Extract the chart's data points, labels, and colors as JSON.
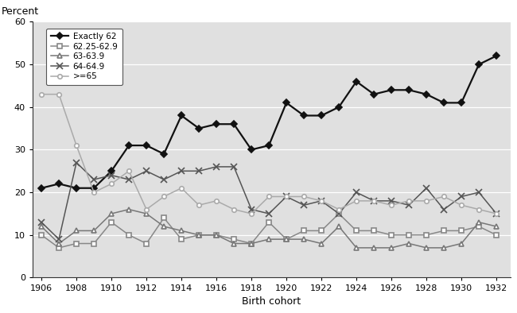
{
  "x": [
    1906,
    1907,
    1908,
    1909,
    1910,
    1911,
    1912,
    1913,
    1914,
    1915,
    1916,
    1917,
    1918,
    1919,
    1920,
    1921,
    1922,
    1923,
    1924,
    1925,
    1926,
    1927,
    1928,
    1929,
    1930,
    1931,
    1932
  ],
  "exactly_62": [
    21,
    22,
    21,
    21,
    25,
    31,
    31,
    29,
    38,
    35,
    36,
    36,
    30,
    31,
    41,
    38,
    38,
    40,
    46,
    43,
    44,
    44,
    43,
    41,
    41,
    50,
    52
  ],
  "s62_25_62_9": [
    10,
    7,
    8,
    8,
    13,
    10,
    8,
    14,
    9,
    10,
    10,
    9,
    8,
    13,
    9,
    11,
    11,
    15,
    11,
    11,
    10,
    10,
    10,
    11,
    11,
    12,
    10
  ],
  "s63_63_9": [
    12,
    8,
    11,
    11,
    15,
    16,
    15,
    12,
    11,
    10,
    10,
    8,
    8,
    9,
    9,
    9,
    8,
    12,
    7,
    7,
    7,
    8,
    7,
    7,
    8,
    13,
    12
  ],
  "s64_64_9": [
    13,
    9,
    27,
    23,
    24,
    23,
    25,
    23,
    25,
    25,
    26,
    26,
    16,
    15,
    19,
    17,
    18,
    15,
    20,
    18,
    18,
    17,
    21,
    16,
    19,
    20,
    15
  ],
  "ge65": [
    43,
    43,
    31,
    20,
    22,
    25,
    16,
    19,
    21,
    17,
    18,
    16,
    15,
    19,
    19,
    19,
    18,
    16,
    18,
    18,
    17,
    18,
    18,
    19,
    17,
    16,
    15
  ],
  "ylim": [
    0,
    60
  ],
  "yticks": [
    0,
    10,
    20,
    30,
    40,
    50,
    60
  ],
  "xticks": [
    1906,
    1908,
    1910,
    1912,
    1914,
    1916,
    1918,
    1920,
    1922,
    1924,
    1926,
    1928,
    1930,
    1932
  ],
  "xlabel": "Birth cohort",
  "ylabel": "Percent",
  "bg_color": "#e0e0e0",
  "legend_labels": [
    "Exactly 62",
    "62.25-62.9",
    "63-63.9",
    "64-64.9",
    ">=65"
  ],
  "line_colors": [
    "#111111",
    "#888888",
    "#777777",
    "#555555",
    "#aaaaaa"
  ],
  "markers": [
    "D",
    "s",
    "^",
    "x",
    "o"
  ],
  "marker_sizes": [
    4,
    4,
    4,
    6,
    4
  ]
}
